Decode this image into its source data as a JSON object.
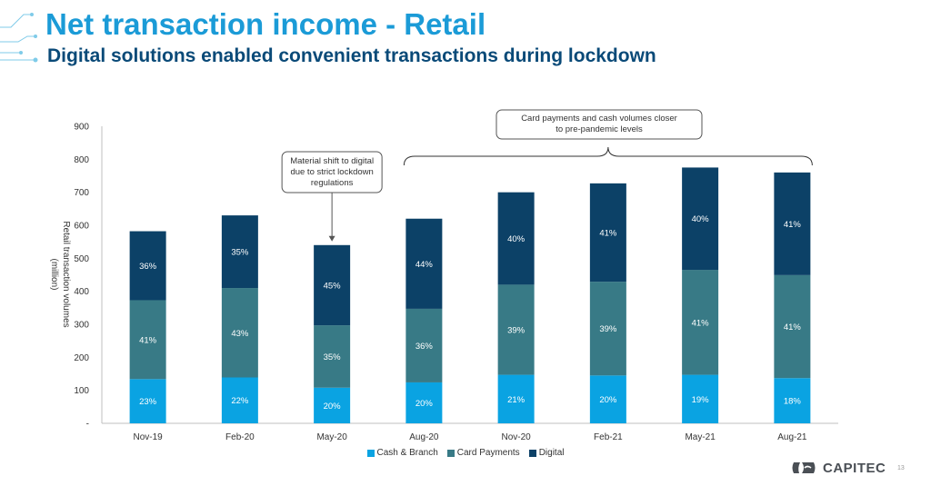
{
  "slide": {
    "title": "Net transaction income - Retail",
    "subtitle": "Digital solutions enabled convenient transactions during lockdown",
    "page_number": "13",
    "logo_text": "CAPITEC"
  },
  "colors": {
    "title": "#1b9bd7",
    "subtitle": "#0a4a78",
    "cash_branch": "#0aa3e2",
    "card_payments": "#387a86",
    "digital": "#0c4167"
  },
  "chart_data": {
    "type": "bar",
    "stacked": true,
    "title": "",
    "xlabel": "",
    "ylabel": "Retail transaction volumes (million)",
    "ylabel_lines": [
      "Retail transaction volumes",
      "(million)"
    ],
    "ylim": [
      0,
      900
    ],
    "yticks": [
      0,
      100,
      200,
      300,
      400,
      500,
      600,
      700,
      800,
      900
    ],
    "ytick_labels": [
      "-",
      "100",
      "200",
      "300",
      "400",
      "500",
      "600",
      "700",
      "800",
      "900"
    ],
    "categories": [
      "Nov-19",
      "Feb-20",
      "May-20",
      "Aug-20",
      "Nov-20",
      "Feb-21",
      "May-21",
      "Aug-21"
    ],
    "totals": [
      582,
      630,
      540,
      620,
      700,
      727,
      775,
      760
    ],
    "series": [
      {
        "name": "Cash & Branch",
        "color": "#0aa3e2",
        "label_color": "#ffffff",
        "values": [
          134,
          139,
          108,
          124,
          147,
          145,
          147,
          137
        ],
        "labels": [
          "23%",
          "22%",
          "20%",
          "20%",
          "21%",
          "20%",
          "19%",
          "18%"
        ]
      },
      {
        "name": "Card Payments",
        "color": "#387a86",
        "label_color": "#ffffff",
        "values": [
          239,
          271,
          189,
          223,
          273,
          284,
          318,
          312
        ],
        "labels": [
          "41%",
          "43%",
          "35%",
          "36%",
          "39%",
          "39%",
          "41%",
          "41%"
        ]
      },
      {
        "name": "Digital",
        "color": "#0c4167",
        "label_color": "#ffffff",
        "values": [
          209,
          220,
          243,
          273,
          280,
          298,
          310,
          311
        ],
        "labels": [
          "36%",
          "35%",
          "45%",
          "44%",
          "40%",
          "41%",
          "40%",
          "41%"
        ]
      }
    ],
    "annotations": [
      {
        "name": "lockdown-callout",
        "lines": [
          "Material shift to digital",
          "due to strict lockdown",
          "regulations"
        ],
        "target_category": "May-20"
      },
      {
        "name": "pre-pandemic-callout",
        "lines": [
          "Card payments and cash volumes closer",
          "to pre-pandemic levels"
        ],
        "span": [
          "Aug-20",
          "Aug-21"
        ]
      }
    ],
    "legend": [
      "Cash & Branch",
      "Card Payments",
      "Digital"
    ],
    "legend_position": "bottom-center",
    "grid": false
  }
}
